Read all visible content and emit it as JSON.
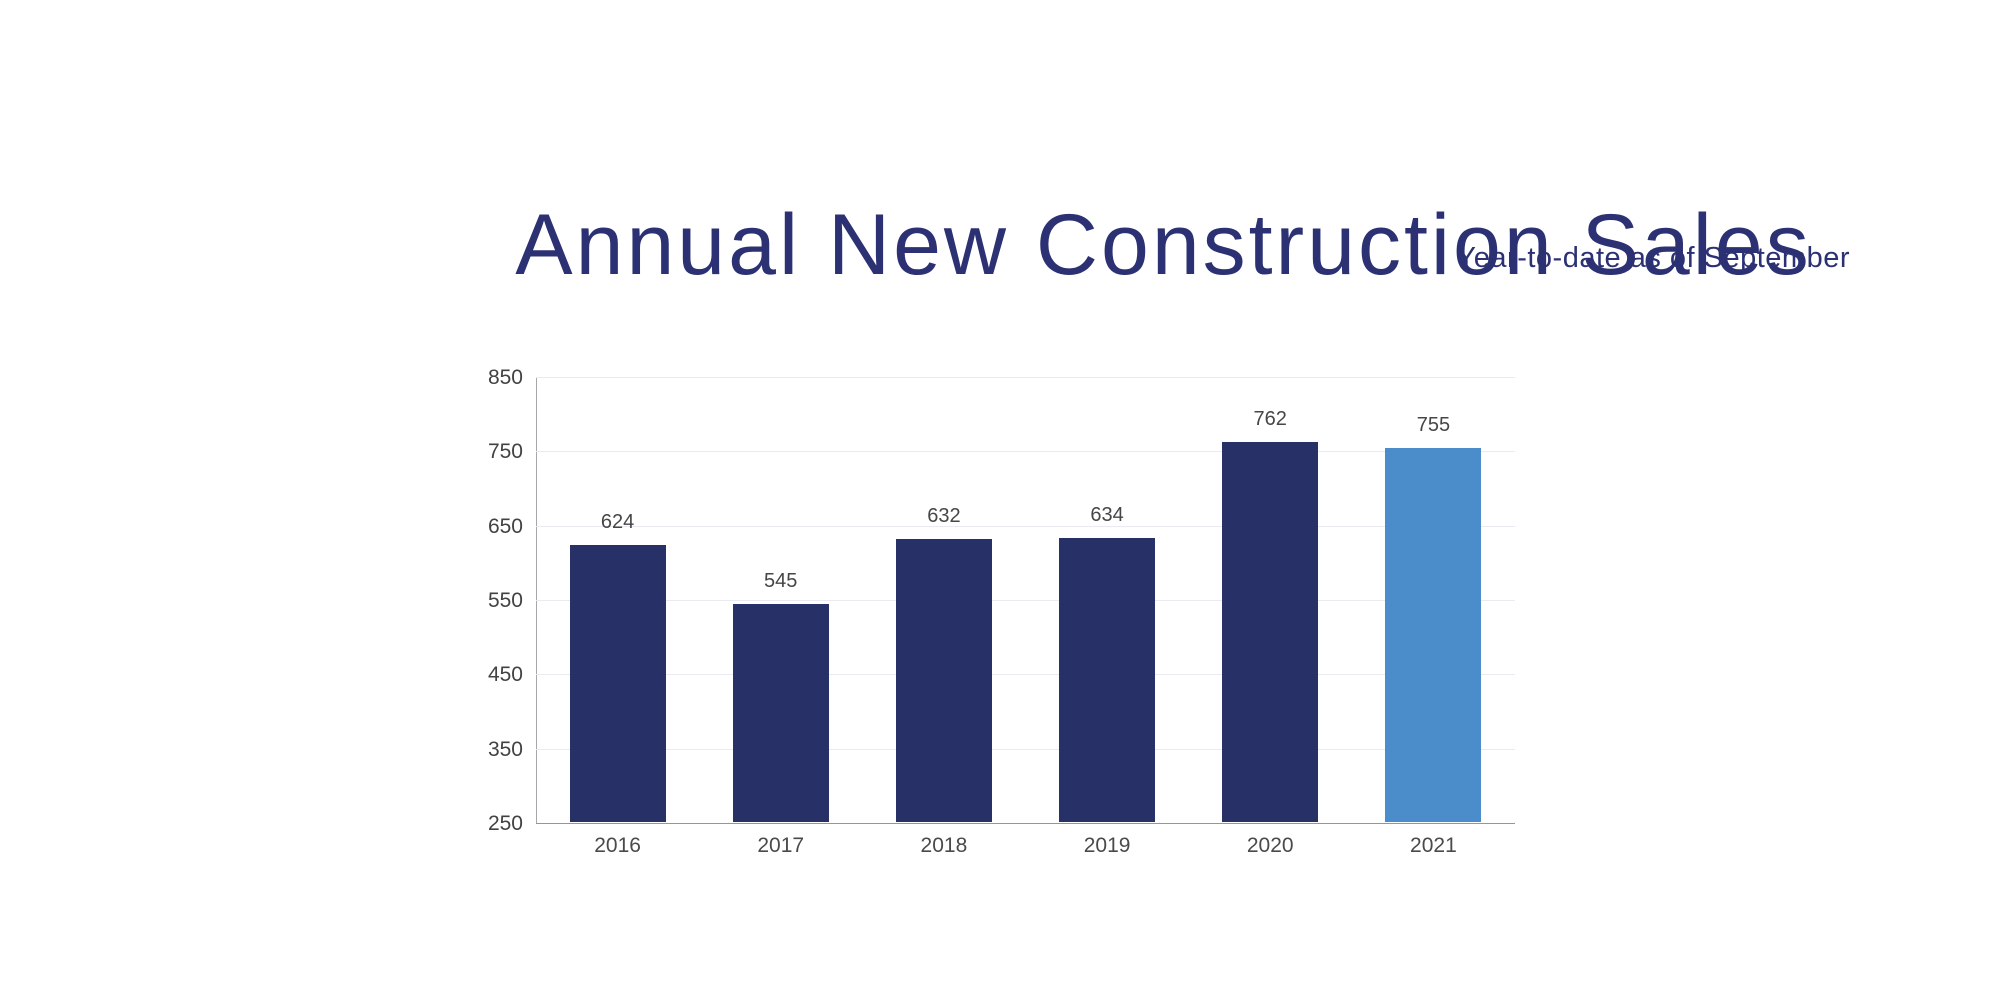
{
  "page": {
    "background": "#ffffff"
  },
  "header": {
    "title": "Annual New Construction Sales",
    "subtitle": "Year-to-date as of September",
    "text_color": "#2b3173"
  },
  "chart_data": {
    "type": "bar",
    "title": "Annual New Construction Sales",
    "subtitle": "Year-to-date as of September",
    "categories": [
      "2016",
      "2017",
      "2018",
      "2019",
      "2020",
      "2021"
    ],
    "values": [
      624,
      545,
      632,
      634,
      762,
      755
    ],
    "value_labels_shown": true,
    "xlabel": "",
    "ylabel": "",
    "ylim": [
      250,
      850
    ],
    "yticks": [
      250,
      350,
      450,
      550,
      650,
      750,
      850
    ],
    "grid": true,
    "legend": false,
    "highlight_index": 5,
    "bar_colors": [
      "#283068",
      "#283068",
      "#283068",
      "#283068",
      "#283068",
      "#4b8dca"
    ],
    "colors": {
      "default_bar": "#283068",
      "highlight_bar": "#4b8dca",
      "gridline": "#e9ebf0",
      "axis_line": "#a6a6ac",
      "baseline": "#95959c",
      "y_tick_label": "#424242",
      "x_tick_label": "#4a4a4a",
      "value_label": "#464646"
    }
  }
}
